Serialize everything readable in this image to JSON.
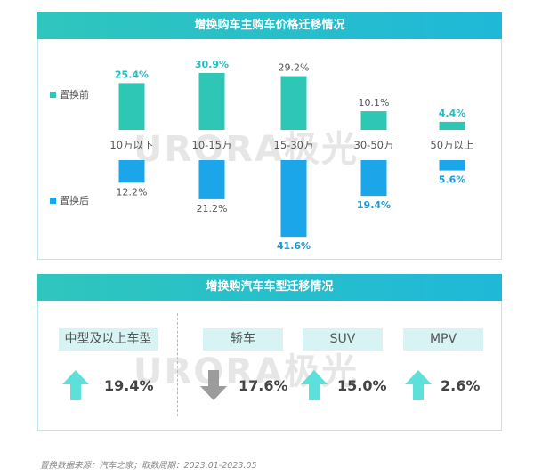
{
  "chart_data": {
    "type": "bar",
    "title": "增换购车主购车价格迁移情况",
    "categories": [
      "10万以下",
      "10-15万",
      "15-30万",
      "30-50万",
      "50万以上"
    ],
    "series": [
      {
        "name": "置换前",
        "values": [
          25.4,
          30.9,
          29.2,
          10.1,
          4.4
        ],
        "labels": [
          "25.4%",
          "30.9%",
          "29.2%",
          "10.1%",
          "4.4%"
        ],
        "highlight": [
          true,
          true,
          false,
          false,
          true
        ],
        "color": "#2ec7b5"
      },
      {
        "name": "置换后",
        "values": [
          12.2,
          21.2,
          41.6,
          19.4,
          5.6
        ],
        "labels": [
          "12.2%",
          "21.2%",
          "41.6%",
          "19.4%",
          "5.6%"
        ],
        "highlight": [
          false,
          false,
          true,
          true,
          true
        ],
        "color": "#1aa6e8"
      }
    ],
    "highlight_colors": {
      "前": "#23bcc0",
      "后": "#1d9ad6"
    },
    "ylim": [
      0,
      45
    ]
  },
  "section2": {
    "title": "增换购汽车车型迁移情况",
    "items": [
      {
        "label": "中型及以上车型",
        "value": "19.4%",
        "direction": "up"
      },
      {
        "label": "轿车",
        "value": "17.6%",
        "direction": "down"
      },
      {
        "label": "SUV",
        "value": "15.0%",
        "direction": "up"
      },
      {
        "label": "MPV",
        "value": "2.6%",
        "direction": "up"
      }
    ],
    "colors": {
      "up": "#5ee0da",
      "down": "#9c9c9c"
    }
  },
  "watermark": "URORA极光",
  "footnote": "置换数据来源：汽车之家；取数周期：2023.01-2023.05"
}
